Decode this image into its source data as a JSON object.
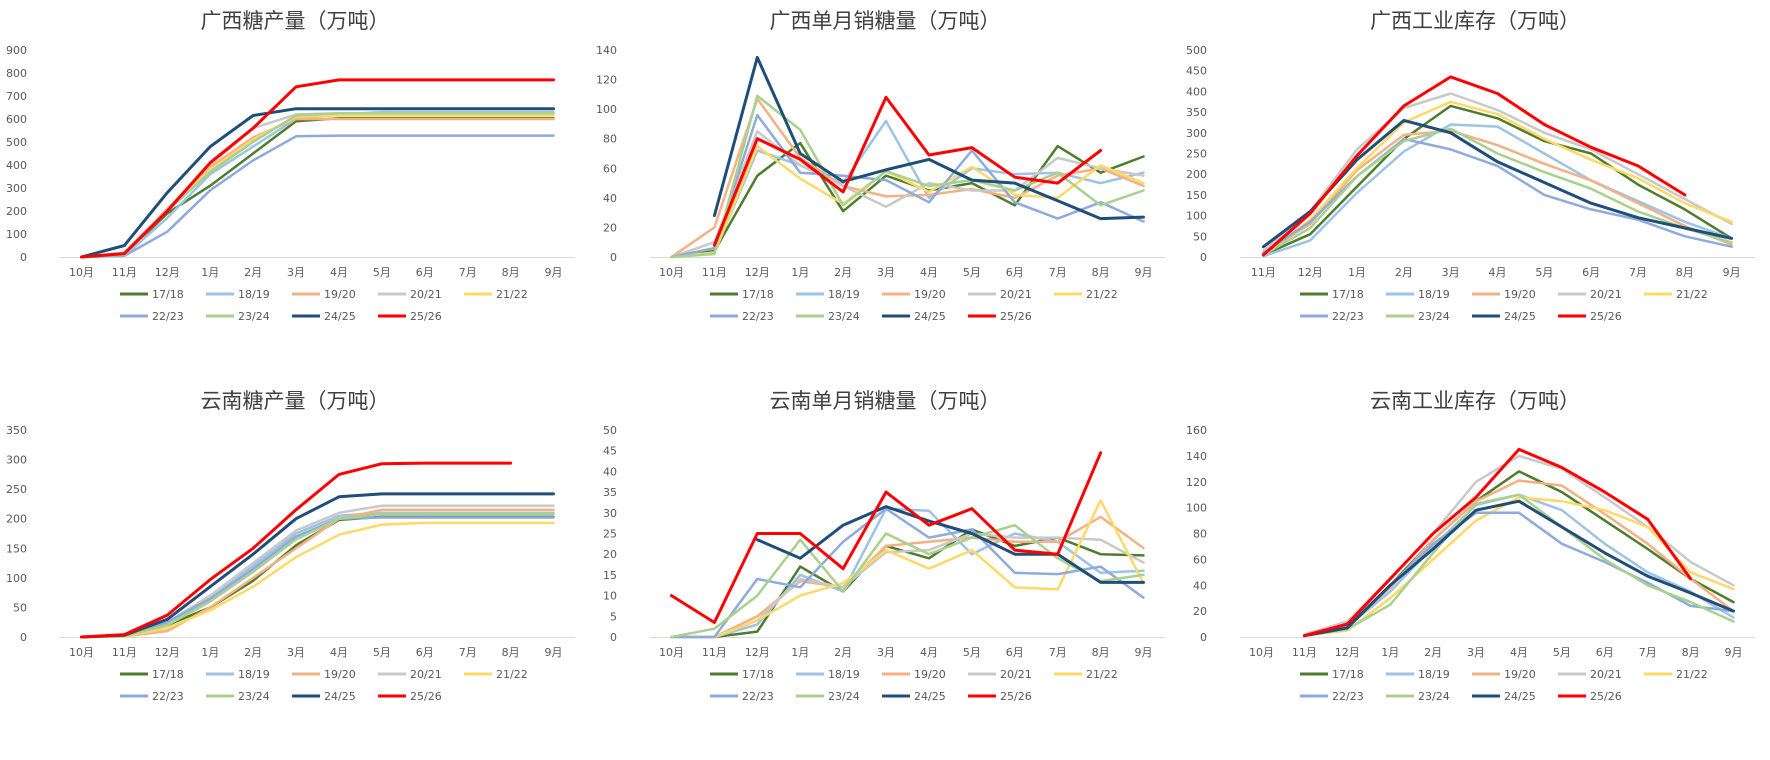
{
  "chart_data": [
    {
      "type": "line",
      "title": "广西糖产量（万吨）",
      "categories": [
        "10月",
        "11月",
        "12月",
        "1月",
        "2月",
        "3月",
        "4月",
        "5月",
        "6月",
        "7月",
        "8月",
        "9月"
      ],
      "ylim": [
        0,
        900
      ],
      "yticks": [
        "0",
        "100",
        "200",
        "300",
        "400",
        "500",
        "600",
        "700",
        "800",
        "900"
      ],
      "legend_position": "bottom",
      "series": [
        {
          "name": "17/18",
          "color": "#4e7d2e",
          "values": [
            0,
            10,
            190,
            310,
            450,
            590,
            603,
            603,
            603,
            603,
            603,
            603
          ]
        },
        {
          "name": "18/19",
          "color": "#9dc3e6",
          "values": [
            0,
            5,
            170,
            360,
            480,
            600,
            620,
            630,
            630,
            630,
            630,
            630
          ]
        },
        {
          "name": "19/20",
          "color": "#f4b183",
          "values": [
            0,
            15,
            210,
            390,
            520,
            600,
            600,
            600,
            600,
            600,
            600,
            600
          ]
        },
        {
          "name": "20/21",
          "color": "#c9c9c9",
          "values": [
            0,
            20,
            210,
            400,
            560,
            620,
            625,
            625,
            625,
            625,
            625,
            625
          ]
        },
        {
          "name": "21/22",
          "color": "#ffd966",
          "values": [
            0,
            10,
            200,
            380,
            510,
            610,
            615,
            615,
            615,
            615,
            615,
            615
          ]
        },
        {
          "name": "22/23",
          "color": "#8faadc",
          "values": [
            0,
            5,
            110,
            290,
            420,
            525,
            528,
            528,
            528,
            528,
            528,
            528
          ]
        },
        {
          "name": "23/24",
          "color": "#a9d18e",
          "values": [
            0,
            10,
            200,
            370,
            500,
            615,
            625,
            625,
            625,
            625,
            625,
            625
          ]
        },
        {
          "name": "24/25",
          "color": "#1f4e79",
          "values": [
            0,
            50,
            280,
            480,
            615,
            645,
            645,
            645,
            645,
            645,
            645,
            645
          ]
        },
        {
          "name": "25/26",
          "color": "#ff0000",
          "values": [
            0,
            15,
            200,
            410,
            560,
            740,
            770,
            770,
            770,
            770,
            770,
            770
          ]
        }
      ]
    },
    {
      "type": "line",
      "title": "广西单月销糖量（万吨）",
      "categories": [
        "10月",
        "11月",
        "12月",
        "1月",
        "2月",
        "3月",
        "4月",
        "5月",
        "6月",
        "7月",
        "8月",
        "9月"
      ],
      "ylim": [
        0,
        140
      ],
      "yticks": [
        "0",
        "20",
        "40",
        "60",
        "80",
        "100",
        "120",
        "140"
      ],
      "legend_position": "bottom",
      "series": [
        {
          "name": "17/18",
          "color": "#4e7d2e",
          "values": [
            0,
            4,
            55,
            77,
            31,
            55,
            45,
            50,
            35,
            75,
            57,
            68
          ]
        },
        {
          "name": "18/19",
          "color": "#9dc3e6",
          "values": [
            0,
            3,
            72,
            62,
            50,
            92,
            40,
            60,
            56,
            57,
            50,
            57
          ]
        },
        {
          "name": "19/20",
          "color": "#f4b183",
          "values": [
            0,
            20,
            107,
            67,
            48,
            41,
            42,
            46,
            40,
            55,
            60,
            48
          ]
        },
        {
          "name": "20/21",
          "color": "#c9c9c9",
          "values": [
            0,
            10,
            85,
            62,
            48,
            34,
            50,
            45,
            45,
            67,
            60,
            55
          ]
        },
        {
          "name": "21/22",
          "color": "#ffd966",
          "values": [
            0,
            3,
            75,
            53,
            36,
            58,
            44,
            61,
            42,
            40,
            62,
            50
          ]
        },
        {
          "name": "22/23",
          "color": "#8faadc",
          "values": [
            0,
            6,
            96,
            57,
            55,
            52,
            37,
            72,
            37,
            26,
            37,
            24
          ]
        },
        {
          "name": "23/24",
          "color": "#a9d18e",
          "values": [
            0,
            2,
            109,
            86,
            35,
            58,
            48,
            52,
            45,
            57,
            35,
            45
          ]
        },
        {
          "name": "24/25",
          "color": "#1f4e79",
          "values": [
            null,
            28,
            135,
            70,
            51,
            59,
            66,
            52,
            50,
            38,
            26,
            27
          ]
        },
        {
          "name": "25/26",
          "color": "#ff0000",
          "values": [
            null,
            8,
            80,
            66,
            44,
            108,
            69,
            74,
            54,
            50,
            72,
            null
          ]
        }
      ]
    },
    {
      "type": "line",
      "title": "广西工业库存（万吨）",
      "categories": [
        "11月",
        "12月",
        "1月",
        "2月",
        "3月",
        "4月",
        "5月",
        "6月",
        "7月",
        "8月",
        "9月"
      ],
      "ylim": [
        0,
        500
      ],
      "yticks": [
        "0",
        "50",
        "100",
        "150",
        "200",
        "250",
        "300",
        "350",
        "400",
        "450",
        "500"
      ],
      "legend_position": "bottom",
      "series": [
        {
          "name": "17/18",
          "color": "#4e7d2e",
          "values": [
            5,
            55,
            170,
            285,
            365,
            335,
            280,
            250,
            175,
            115,
            45
          ]
        },
        {
          "name": "18/19",
          "color": "#9dc3e6",
          "values": [
            2,
            40,
            155,
            255,
            320,
            315,
            250,
            185,
            135,
            85,
            45
          ]
        },
        {
          "name": "19/20",
          "color": "#f4b183",
          "values": [
            10,
            80,
            210,
            295,
            305,
            270,
            225,
            185,
            130,
            75,
            30
          ]
        },
        {
          "name": "20/21",
          "color": "#c9c9c9",
          "values": [
            15,
            110,
            260,
            360,
            395,
            355,
            300,
            260,
            200,
            140,
            80
          ]
        },
        {
          "name": "21/22",
          "color": "#ffd966",
          "values": [
            5,
            90,
            215,
            325,
            375,
            345,
            285,
            235,
            190,
            130,
            85
          ]
        },
        {
          "name": "22/23",
          "color": "#8faadc",
          "values": [
            10,
            85,
            195,
            285,
            260,
            220,
            150,
            115,
            90,
            50,
            25
          ]
        },
        {
          "name": "23/24",
          "color": "#a9d18e",
          "values": [
            5,
            70,
            195,
            280,
            310,
            250,
            205,
            165,
            110,
            70,
            35
          ]
        },
        {
          "name": "24/25",
          "color": "#1f4e79",
          "values": [
            25,
            110,
            235,
            330,
            300,
            230,
            180,
            130,
            95,
            70,
            45
          ]
        },
        {
          "name": "25/26",
          "color": "#ff0000",
          "values": [
            5,
            105,
            245,
            365,
            435,
            395,
            320,
            265,
            220,
            150,
            null
          ]
        }
      ]
    },
    {
      "type": "line",
      "title": "云南糖产量（万吨）",
      "categories": [
        "10月",
        "11月",
        "12月",
        "1月",
        "2月",
        "3月",
        "4月",
        "5月",
        "6月",
        "7月",
        "8月",
        "9月"
      ],
      "ylim": [
        0,
        350
      ],
      "yticks": [
        "0",
        "50",
        "100",
        "150",
        "200",
        "250",
        "300",
        "350"
      ],
      "legend_position": "bottom",
      "series": [
        {
          "name": "17/18",
          "color": "#4e7d2e",
          "values": [
            0,
            2,
            20,
            50,
            95,
            155,
            198,
            203,
            203,
            203,
            203,
            203
          ]
        },
        {
          "name": "18/19",
          "color": "#9dc3e6",
          "values": [
            0,
            2,
            25,
            65,
            120,
            175,
            205,
            210,
            210,
            210,
            210,
            210
          ]
        },
        {
          "name": "19/20",
          "color": "#f4b183",
          "values": [
            0,
            1,
            10,
            50,
            100,
            150,
            200,
            215,
            215,
            215,
            215,
            215
          ]
        },
        {
          "name": "20/21",
          "color": "#c9c9c9",
          "values": [
            0,
            3,
            25,
            70,
            125,
            180,
            210,
            222,
            222,
            222,
            222,
            222
          ]
        },
        {
          "name": "21/22",
          "color": "#ffd966",
          "values": [
            0,
            1,
            15,
            45,
            85,
            135,
            173,
            190,
            193,
            193,
            193,
            193
          ]
        },
        {
          "name": "22/23",
          "color": "#8faadc",
          "values": [
            0,
            2,
            25,
            65,
            115,
            170,
            200,
            202,
            202,
            202,
            202,
            202
          ]
        },
        {
          "name": "23/24",
          "color": "#a9d18e",
          "values": [
            0,
            2,
            20,
            60,
            110,
            165,
            200,
            208,
            208,
            208,
            208,
            208
          ]
        },
        {
          "name": "24/25",
          "color": "#1f4e79",
          "values": [
            0,
            3,
            30,
            85,
            140,
            200,
            237,
            242,
            242,
            242,
            242,
            242
          ]
        },
        {
          "name": "25/26",
          "color": "#ff0000",
          "values": [
            0,
            4,
            37,
            97,
            150,
            215,
            275,
            293,
            294,
            294,
            294,
            null
          ]
        }
      ]
    },
    {
      "type": "line",
      "title": "云南单月销糖量（万吨）",
      "categories": [
        "10月",
        "11月",
        "12月",
        "1月",
        "2月",
        "3月",
        "4月",
        "5月",
        "6月",
        "7月",
        "8月",
        "9月"
      ],
      "ylim": [
        0,
        50
      ],
      "yticks": [
        "0",
        "5",
        "10",
        "15",
        "20",
        "25",
        "30",
        "35",
        "40",
        "45",
        "50"
      ],
      "legend_position": "bottom",
      "series": [
        {
          "name": "17/18",
          "color": "#4e7d2e",
          "values": [
            0,
            0,
            1.3,
            17,
            11,
            22,
            19,
            26,
            22,
            24,
            20,
            19.7
          ]
        },
        {
          "name": "18/19",
          "color": "#9dc3e6",
          "values": [
            0,
            0,
            3,
            15,
            11,
            31,
            30.5,
            20,
            25,
            23,
            15.5,
            16
          ]
        },
        {
          "name": "19/20",
          "color": "#f4b183",
          "values": [
            0,
            0,
            5,
            13.5,
            12,
            22,
            23,
            24,
            23,
            23,
            29,
            21.5
          ]
        },
        {
          "name": "20/21",
          "color": "#c9c9c9",
          "values": [
            0,
            0,
            4,
            14,
            12,
            20.5,
            21,
            25,
            24,
            24,
            23.5,
            18
          ]
        },
        {
          "name": "21/22",
          "color": "#ffd966",
          "values": [
            0,
            0,
            4,
            10,
            13,
            21,
            16.5,
            21,
            12,
            11.5,
            33,
            13
          ]
        },
        {
          "name": "22/23",
          "color": "#8faadc",
          "values": [
            0,
            0,
            14,
            12,
            23,
            31,
            24,
            26,
            15.5,
            15.2,
            17,
            9.5
          ]
        },
        {
          "name": "23/24",
          "color": "#a9d18e",
          "values": [
            0,
            2,
            10,
            23.5,
            11,
            25,
            20,
            24,
            27,
            19,
            13.5,
            15
          ]
        },
        {
          "name": "24/25",
          "color": "#1f4e79",
          "values": [
            null,
            null,
            23.5,
            19,
            27,
            31.5,
            28,
            25,
            20,
            20,
            13.2,
            13.2
          ]
        },
        {
          "name": "25/26",
          "color": "#ff0000",
          "values": [
            10,
            3.5,
            25,
            25,
            16.5,
            35,
            27,
            31,
            21,
            20,
            44.5,
            null
          ]
        }
      ]
    },
    {
      "type": "line",
      "title": "云南工业库存（万吨）",
      "categories": [
        "10月",
        "11月",
        "12月",
        "1月",
        "2月",
        "3月",
        "4月",
        "5月",
        "6月",
        "7月",
        "8月",
        "9月"
      ],
      "ylim": [
        0,
        160
      ],
      "yticks": [
        "0",
        "20",
        "40",
        "60",
        "80",
        "100",
        "120",
        "140",
        "160"
      ],
      "legend_position": "bottom",
      "series": [
        {
          "name": "17/18",
          "color": "#4e7d2e",
          "values": [
            null,
            1,
            8,
            40,
            75,
            105,
            128,
            112,
            90,
            68,
            45,
            27
          ]
        },
        {
          "name": "18/19",
          "color": "#9dc3e6",
          "values": [
            null,
            1,
            8,
            35,
            70,
            102,
            110,
            98,
            72,
            50,
            35,
            15
          ]
        },
        {
          "name": "19/20",
          "color": "#f4b183",
          "values": [
            null,
            1,
            8,
            38,
            75,
            105,
            121,
            117,
            95,
            72,
            45,
            20
          ]
        },
        {
          "name": "20/21",
          "color": "#c9c9c9",
          "values": [
            null,
            2,
            12,
            45,
            80,
            120,
            140,
            130,
            108,
            85,
            58,
            40
          ]
        },
        {
          "name": "21/22",
          "color": "#ffd966",
          "values": [
            null,
            1,
            5,
            30,
            60,
            90,
            108,
            105,
            98,
            85,
            50,
            37
          ]
        },
        {
          "name": "22/23",
          "color": "#8faadc",
          "values": [
            null,
            1,
            8,
            40,
            72,
            96,
            96,
            72,
            58,
            42,
            24,
            20
          ]
        },
        {
          "name": "23/24",
          "color": "#a9d18e",
          "values": [
            null,
            1,
            6,
            25,
            65,
            103,
            110,
            85,
            60,
            40,
            27,
            12
          ]
        },
        {
          "name": "24/25",
          "color": "#1f4e79",
          "values": [
            null,
            1,
            7,
            40,
            68,
            98,
            105,
            85,
            65,
            47,
            34,
            20
          ]
        },
        {
          "name": "25/26",
          "color": "#ff0000",
          "values": [
            null,
            1,
            10,
            45,
            80,
            108,
            145,
            131,
            112,
            91,
            45,
            null
          ]
        }
      ]
    }
  ]
}
